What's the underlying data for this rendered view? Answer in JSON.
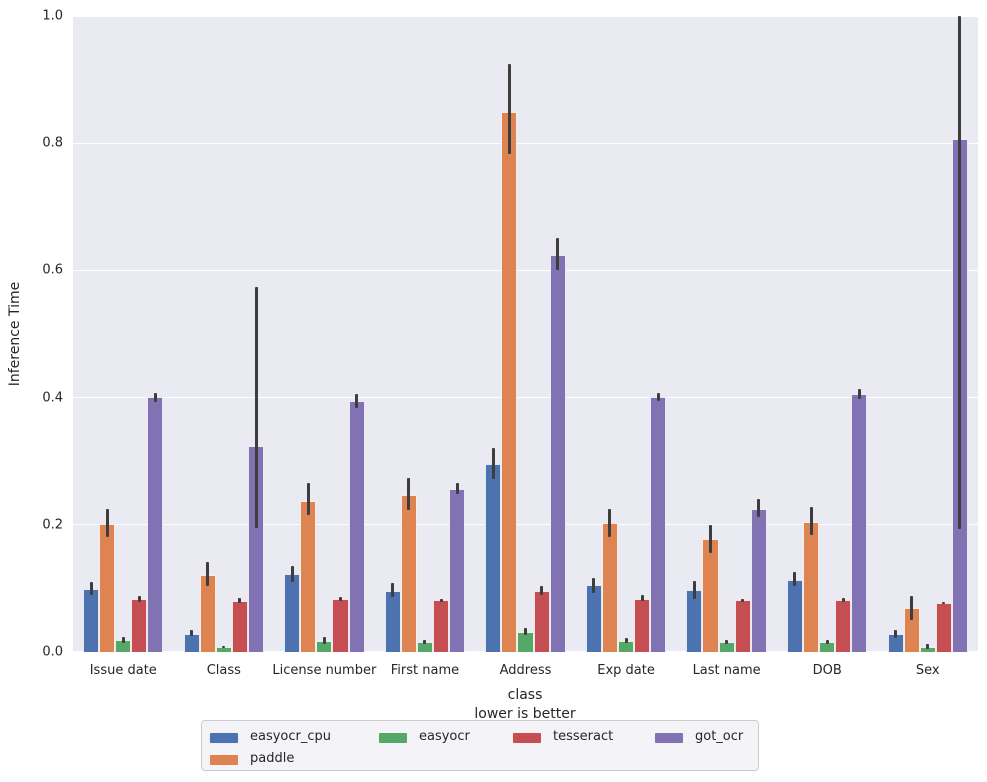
{
  "figure": {
    "ylabel": "Inference Time",
    "xlabel_line1": "class",
    "xlabel_line2": "lower is better"
  },
  "chart_data": {
    "type": "bar",
    "title": "",
    "xlabel": "class\nlower is better",
    "ylabel": "Inference Time",
    "ylim": [
      0.0,
      1.0
    ],
    "yticks": [
      0.0,
      0.2,
      0.4,
      0.6,
      0.8,
      1.0
    ],
    "ytick_labels": [
      "0.0",
      "0.2",
      "0.4",
      "0.6",
      "0.8",
      "1.0"
    ],
    "grid": true,
    "legend_position": "bottom-center",
    "background": "#EAEAF2",
    "error_bar_color": "#3d3d3d",
    "categories": [
      "Issue date",
      "Class",
      "License number",
      "First name",
      "Address",
      "Exp date",
      "Last name",
      "DOB",
      "Sex"
    ],
    "series": [
      {
        "name": "easyocr_cpu",
        "color": "#4C72B0",
        "values": [
          0.099,
          0.029,
          0.122,
          0.096,
          0.296,
          0.106,
          0.097,
          0.113,
          0.028
        ],
        "err_low": [
          0.09,
          0.025,
          0.11,
          0.087,
          0.272,
          0.092,
          0.084,
          0.103,
          0.022
        ],
        "err_high": [
          0.11,
          0.035,
          0.135,
          0.109,
          0.321,
          0.116,
          0.111,
          0.126,
          0.035
        ]
      },
      {
        "name": "paddle",
        "color": "#DD8452",
        "values": [
          0.201,
          0.121,
          0.238,
          0.247,
          0.849,
          0.203,
          0.177,
          0.205,
          0.069
        ],
        "err_low": [
          0.181,
          0.104,
          0.215,
          0.223,
          0.783,
          0.181,
          0.155,
          0.184,
          0.051
        ],
        "err_high": [
          0.225,
          0.142,
          0.266,
          0.273,
          0.924,
          0.225,
          0.2,
          0.228,
          0.088
        ]
      },
      {
        "name": "easyocr",
        "color": "#55A868",
        "values": [
          0.019,
          0.008,
          0.018,
          0.016,
          0.031,
          0.018,
          0.016,
          0.016,
          0.008
        ],
        "err_low": [
          0.014,
          0.006,
          0.013,
          0.013,
          0.027,
          0.014,
          0.013,
          0.013,
          0.005
        ],
        "err_high": [
          0.024,
          0.01,
          0.024,
          0.019,
          0.038,
          0.022,
          0.019,
          0.019,
          0.013
        ]
      },
      {
        "name": "tesseract",
        "color": "#C44E52",
        "values": [
          0.083,
          0.08,
          0.083,
          0.081,
          0.096,
          0.084,
          0.081,
          0.082,
          0.077
        ],
        "err_low": [
          0.079,
          0.077,
          0.08,
          0.078,
          0.09,
          0.08,
          0.078,
          0.079,
          0.075
        ],
        "err_high": [
          0.088,
          0.085,
          0.087,
          0.084,
          0.104,
          0.09,
          0.084,
          0.085,
          0.079
        ]
      },
      {
        "name": "got_ocr",
        "color": "#8172B3",
        "values": [
          0.401,
          0.324,
          0.394,
          0.257,
          0.625,
          0.401,
          0.225,
          0.405,
          0.807
        ],
        "err_low": [
          0.393,
          0.195,
          0.383,
          0.248,
          0.601,
          0.394,
          0.213,
          0.398,
          0.193
        ],
        "err_high": [
          0.408,
          0.574,
          0.406,
          0.266,
          0.651,
          0.408,
          0.24,
          0.413,
          1.0
        ]
      }
    ],
    "legend_columns": [
      [
        "easyocr_cpu",
        "paddle"
      ],
      [
        "easyocr"
      ],
      [
        "tesseract"
      ],
      [
        "got_ocr"
      ]
    ]
  }
}
